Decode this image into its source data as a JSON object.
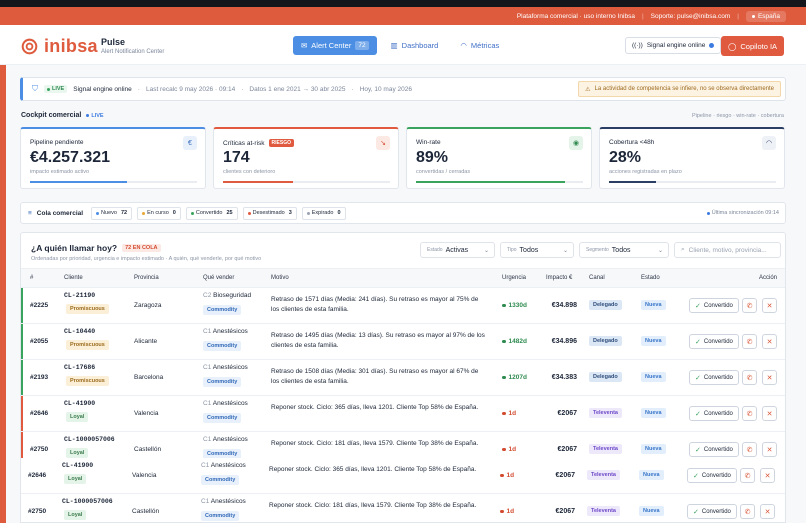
{
  "topbar": {
    "platform": "Plataforma comercial · uso interno Inibsa",
    "support": "Soporte: pulse@inibsa.com",
    "language": "España"
  },
  "header": {
    "logo": "inibsa",
    "app_title": "Pulse",
    "app_subtitle": "Alert Notification Center",
    "nav": [
      {
        "label": "Alert Center",
        "badge": "72",
        "active": true
      },
      {
        "label": "Dashboard",
        "active": false
      },
      {
        "label": "Métricas",
        "active": false
      }
    ],
    "engine_label": "Signal engine online",
    "copilot_label": "Copiloto IA"
  },
  "status_bar": {
    "live": "LIVE",
    "engine": "Signal engine online",
    "recalc": "Last recalc 9 may 2026 · 09:14",
    "data_range": "Datos 1 ene 2021 → 30 abr 2025",
    "today": "Hoy, 10 may 2026",
    "warning": "La actividad de competencia se infiere, no se observa directamente"
  },
  "cockpit": {
    "title": "Cockpit comercial",
    "live": "LIVE",
    "right_text": "Pipeline · riesgo · win-rate · cobertura"
  },
  "kpis": [
    {
      "label": "Pipeline pendiente",
      "value": "€4.257.321",
      "sub": "impacto estimado activo",
      "icon": "€",
      "accent": "#4c8ee4",
      "progress": 0.58
    },
    {
      "label": "Críticas at-risk",
      "badge": "RIESGO",
      "value": "174",
      "sub": "clientes con deterioro",
      "icon": "↘",
      "accent": "#e05a3f",
      "progress": 0.42
    },
    {
      "label": "Win-rate",
      "value": "89%",
      "sub": "convertidas / cerradas",
      "icon": "◉",
      "accent": "#3aa35e",
      "progress": 0.89
    },
    {
      "label": "Cobertura <48h",
      "value": "28%",
      "sub": "acciones registradas en plazo",
      "icon": "◠",
      "accent": "#2a3f63",
      "progress": 0.28
    }
  ],
  "cola": {
    "title": "Cola comercial",
    "chips": [
      {
        "label": "Nuevo",
        "count": "72",
        "color": "#4c8ee4"
      },
      {
        "label": "En curso",
        "count": "0",
        "color": "#e8a93a"
      },
      {
        "label": "Convertido",
        "count": "25",
        "color": "#3aa35e"
      },
      {
        "label": "Desestimado",
        "count": "3",
        "color": "#e05a3f"
      },
      {
        "label": "Expirado",
        "count": "0",
        "color": "#9aa3b2"
      }
    ],
    "sync": "Última sincronización 09:14"
  },
  "panel": {
    "title": "¿A quién llamar hoy?",
    "count_badge": "72 EN COLA",
    "subtitle": "Ordenadas por prioridad, urgencia e impacto estimado · A quién, qué venderle, por qué motivo",
    "filters": [
      {
        "label": "Estado",
        "value": "Activas"
      },
      {
        "label": "Tipo",
        "value": "Todos"
      },
      {
        "label": "Segmento",
        "value": "Todos"
      }
    ],
    "search_placeholder": "Cliente, motivo, provincia...",
    "columns": [
      "#",
      "Cliente",
      "Provincia",
      "Qué vender",
      "Motivo",
      "Urgencia",
      "Impacto €",
      "Canal",
      "Estado",
      "Acción"
    ]
  },
  "rows": [
    {
      "id": "#2225",
      "client": "CL-21190",
      "segment": "Promiscuous",
      "province": "Zaragoza",
      "tier": "C2",
      "product": "Bioseguridad",
      "type": "Commodity",
      "motivo": "Retraso de 1571 días (Media: 241 días). Su retraso es mayor al 75% de los clientes de esta familia.",
      "urgency": "1330d",
      "impact": "€34.898",
      "channel": "Delegado",
      "status": "Nueva",
      "action": "Convertido"
    },
    {
      "id": "#2055",
      "client": "CL-10440",
      "segment": "Promiscuous",
      "province": "Alicante",
      "tier": "C1",
      "product": "Anestésicos",
      "type": "Commodity",
      "motivo": "Retraso de 1495 días (Media: 13 días). Su retraso es mayor al 97% de los clientes de esta familia.",
      "urgency": "1482d",
      "impact": "€34.896",
      "channel": "Delegado",
      "status": "Nueva",
      "action": "Convertido"
    },
    {
      "id": "#2193",
      "client": "CL-17686",
      "segment": "Promiscuous",
      "province": "Barcelona",
      "tier": "C1",
      "product": "Anestésicos",
      "type": "Commodity",
      "motivo": "Retraso de 1508 días (Media: 301 días). Su retraso es mayor al 67% de los clientes de esta familia.",
      "urgency": "1207d",
      "impact": "€34.383",
      "channel": "Delegado",
      "status": "Nueva",
      "action": "Convertido"
    },
    {
      "id": "#2646",
      "client": "CL-41900",
      "segment": "Loyal",
      "province": "Valencia",
      "tier": "C1",
      "product": "Anestésicos",
      "type": "Commodity",
      "motivo": "Reponer stock. Ciclo: 365 días, lleva 1201. Cliente Top 58% de España.",
      "urgency": "1d",
      "impact": "€2067",
      "channel": "Televenta",
      "status": "Nueva",
      "action": "Convertido"
    },
    {
      "id": "#2750",
      "client": "CL-1000057006",
      "segment": "Loyal",
      "province": "Castellón",
      "tier": "C1",
      "product": "Anestésicos",
      "type": "Commodity",
      "motivo": "Reponer stock. Ciclo: 181 días, lleva 1579. Cliente Top 38% de España.",
      "urgency": "1d",
      "impact": "€2067",
      "channel": "Televenta",
      "status": "Nueva",
      "action": "Convertido"
    },
    {
      "id": "#2646",
      "client": "CL-41900",
      "segment": "Loyal",
      "province": "Valencia",
      "tier": "C1",
      "product": "Anestésicos",
      "type": "Commodity",
      "motivo": "Reponer stock. Ciclo: 365 días, lleva 1201. Cliente Top 58% de España.",
      "urgency": "1d",
      "impact": "€2067",
      "channel": "Televenta",
      "status": "Nueva",
      "action": "Convertido"
    },
    {
      "id": "#2750",
      "client": "CL-1000057006",
      "segment": "Loyal",
      "province": "Castellón",
      "tier": "C1",
      "product": "Anestésicos",
      "type": "Commodity",
      "motivo": "Reponer stock. Ciclo: 181 días, lleva 1579. Cliente Top 38% de España.",
      "urgency": "1d",
      "impact": "€2067",
      "channel": "Televenta",
      "status": "Nueva",
      "action": "Convertido"
    }
  ],
  "colors": {
    "brand": "#de5b3e",
    "accent": "#4c8ee4",
    "success": "#3aa35e",
    "danger": "#e05a3f"
  }
}
